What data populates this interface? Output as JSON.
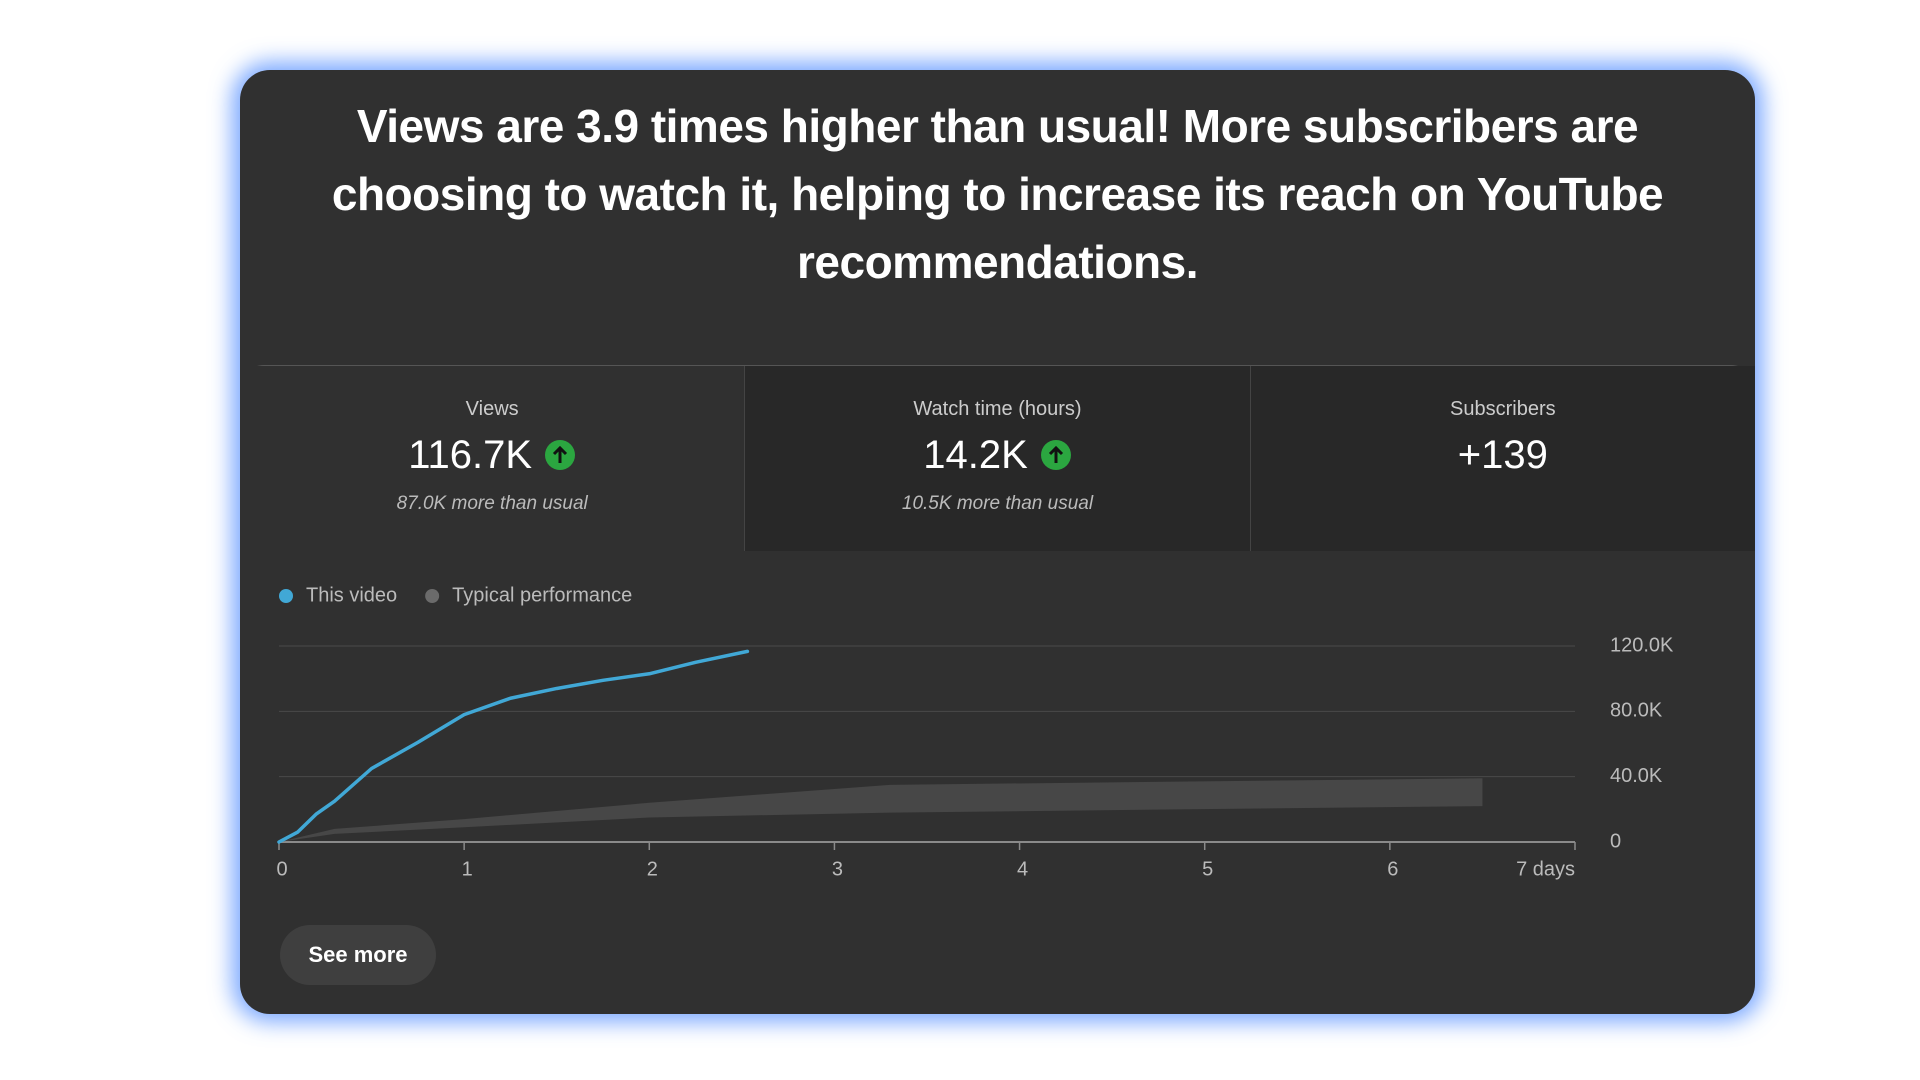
{
  "headline": "Views are 3.9 times higher than usual! More subscribers are choosing to watch it, helping to increase its reach on YouTube recommendations.",
  "metrics": [
    {
      "label": "Views",
      "value": "116.7K",
      "note": "87.0K more than usual"
    },
    {
      "label": "Watch time (hours)",
      "value": "14.2K",
      "note": "10.5K more than usual"
    },
    {
      "label": "Subscribers",
      "value": "+139"
    }
  ],
  "chart_data": {
    "type": "line",
    "series": [
      {
        "name": "This video",
        "color": "#41a8d6",
        "x": [
          0,
          0.1,
          0.2,
          0.3,
          0.5,
          0.75,
          1,
          1.25,
          1.5,
          1.75,
          2,
          2.25,
          2.53
        ],
        "values": [
          0,
          6000,
          17000,
          25000,
          45000,
          61000,
          78000,
          88000,
          94000,
          99000,
          103000,
          110000,
          116700
        ]
      },
      {
        "name": "Typical performance",
        "color": "#6b6b6b",
        "fill": "#474747",
        "x": [
          0,
          0.3,
          1,
          2,
          3.3,
          6.5
        ],
        "values": [
          0,
          8000,
          14000,
          24000,
          35000,
          39000
        ],
        "low": [
          0,
          5000,
          9000,
          15000,
          18000,
          22000
        ]
      }
    ],
    "xlim": [
      0,
      7
    ],
    "xticks": [
      0,
      1,
      2,
      3,
      4,
      5,
      6,
      {
        "value": 7,
        "label": "7 days"
      }
    ],
    "ylim": [
      0,
      120000
    ],
    "yticks": [
      0,
      {
        "value": 40000,
        "label": "40.0K"
      },
      {
        "value": 80000,
        "label": "80.0K"
      },
      {
        "value": 120000,
        "label": "120.0K"
      }
    ],
    "grid": true,
    "y_axis_side": "right"
  },
  "button": "See more"
}
